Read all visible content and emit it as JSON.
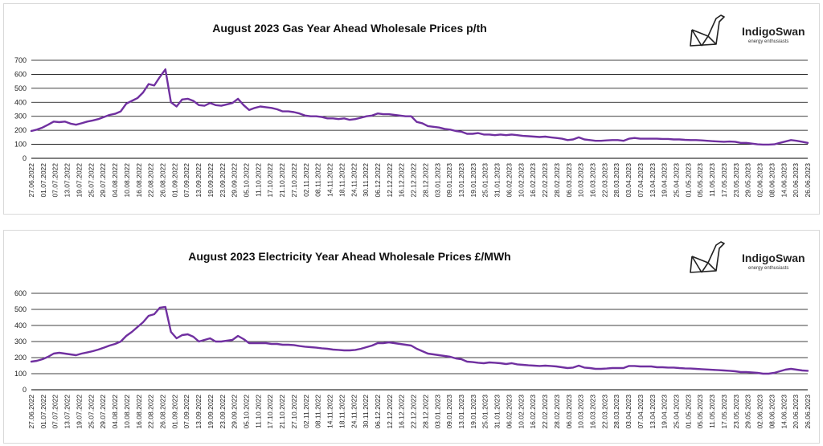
{
  "colors": {
    "line": "#7030A0",
    "grid": "#000000",
    "brand_text": "#222222"
  },
  "logo": {
    "name": "IndigoSwan",
    "tagline": "energy enthusiasts",
    "icon": "origami-swan-icon"
  },
  "chart_data": [
    {
      "type": "line",
      "title": "August 2023 Gas Year Ahead Wholesale Prices p/th",
      "xlabel": "",
      "ylabel": "",
      "ylim": [
        0,
        700
      ],
      "yticks": [
        0,
        100,
        200,
        300,
        400,
        500,
        600,
        700
      ],
      "grid": true,
      "x_tick_labels": [
        "27.06.2022",
        "01.07.2022",
        "07.07.2022",
        "13.07.2022",
        "19.07.2022",
        "25.07.2022",
        "29.07.2022",
        "04.08.2022",
        "10.08.2022",
        "16.08.2022",
        "22.08.2022",
        "26.08.2022",
        "01.09.2022",
        "07.09.2022",
        "13.09.2022",
        "19.09.2022",
        "23.09.2022",
        "29.09.2022",
        "05.10.2022",
        "11.10.2022",
        "17.10.2022",
        "21.10.2022",
        "27.10.2022",
        "02.11.2022",
        "08.11.2022",
        "14.11.2022",
        "18.11.2022",
        "24.11.2022",
        "30.11.2022",
        "06.12.2022",
        "12.12.2022",
        "16.12.2022",
        "22.12.2022",
        "28.12.2022",
        "03.01.2023",
        "09.01.2023",
        "13.01.2023",
        "19.01.2023",
        "25.01.2023",
        "31.01.2023",
        "06.02.2023",
        "10.02.2023",
        "16.02.2023",
        "22.02.2023",
        "28.02.2023",
        "06.03.2023",
        "10.03.2023",
        "16.03.2023",
        "22.03.2023",
        "28.03.2023",
        "03.04.2023",
        "07.04.2023",
        "13.04.2023",
        "19.04.2023",
        "25.04.2023",
        "01.05.2023",
        "05.05.2023",
        "11.05.2023",
        "17.05.2023",
        "23.05.2023",
        "29.05.2023",
        "02.06.2023",
        "08.06.2023",
        "14.06.2023",
        "20.06.2023",
        "26.06.2023"
      ],
      "series": [
        {
          "name": "Gas Year Ahead p/th",
          "values": [
            195,
            205,
            220,
            240,
            262,
            258,
            262,
            248,
            240,
            250,
            262,
            270,
            280,
            295,
            310,
            318,
            335,
            390,
            410,
            430,
            470,
            530,
            520,
            580,
            635,
            400,
            370,
            420,
            425,
            410,
            380,
            375,
            395,
            380,
            375,
            385,
            395,
            425,
            380,
            345,
            360,
            370,
            365,
            360,
            350,
            335,
            335,
            330,
            320,
            305,
            300,
            300,
            295,
            285,
            285,
            280,
            285,
            275,
            280,
            290,
            300,
            305,
            320,
            315,
            315,
            310,
            305,
            300,
            300,
            260,
            250,
            230,
            225,
            220,
            210,
            205,
            195,
            190,
            175,
            175,
            180,
            170,
            170,
            165,
            170,
            165,
            170,
            165,
            160,
            158,
            155,
            152,
            155,
            150,
            145,
            140,
            130,
            135,
            150,
            135,
            130,
            125,
            125,
            128,
            130,
            130,
            125,
            140,
            145,
            140,
            140,
            140,
            140,
            138,
            138,
            135,
            135,
            132,
            130,
            130,
            128,
            125,
            122,
            120,
            118,
            120,
            118,
            110,
            110,
            105,
            100,
            98,
            98,
            100,
            110,
            120,
            130,
            125,
            118,
            110
          ]
        }
      ]
    },
    {
      "type": "line",
      "title": "August 2023 Electricity Year Ahead Wholesale Prices £/MWh",
      "xlabel": "",
      "ylabel": "",
      "ylim": [
        0,
        600
      ],
      "yticks": [
        0,
        100,
        200,
        300,
        400,
        500,
        600
      ],
      "grid": true,
      "x_tick_labels": [
        "27.06.2022",
        "01.07.2022",
        "07.07.2022",
        "13.07.2022",
        "19.07.2022",
        "25.07.2022",
        "29.07.2022",
        "04.08.2022",
        "10.08.2022",
        "16.08.2022",
        "22.08.2022",
        "26.08.2022",
        "01.09.2022",
        "07.09.2022",
        "13.09.2022",
        "19.09.2022",
        "23.09.2022",
        "29.09.2022",
        "05.10.2022",
        "11.10.2022",
        "17.10.2022",
        "21.10.2022",
        "27.10.2022",
        "02.11.2022",
        "08.11.2022",
        "14.11.2022",
        "18.11.2022",
        "24.11.2022",
        "30.11.2022",
        "06.12.2022",
        "12.12.2022",
        "16.12.2022",
        "22.12.2022",
        "28.12.2022",
        "03.01.2023",
        "09.01.2023",
        "13.01.2023",
        "19.01.2023",
        "25.01.2023",
        "31.01.2023",
        "06.02.2023",
        "10.02.2023",
        "16.02.2023",
        "22.02.2023",
        "28.02.2023",
        "06.03.2023",
        "10.03.2023",
        "16.03.2023",
        "22.03.2023",
        "28.03.2023",
        "03.04.2023",
        "07.04.2023",
        "13.04.2023",
        "19.04.2023",
        "25.04.2023",
        "01.05.2023",
        "05.05.2023",
        "11.05.2023",
        "17.05.2023",
        "23.05.2023",
        "29.05.2023",
        "02.06.2023",
        "08.06.2023",
        "14.06.2023",
        "20.06.2023",
        "26.06.2023"
      ],
      "series": [
        {
          "name": "Electricity Year Ahead £/MWh",
          "values": [
            175,
            180,
            190,
            205,
            225,
            230,
            225,
            220,
            215,
            225,
            232,
            240,
            250,
            262,
            275,
            285,
            300,
            335,
            360,
            390,
            420,
            460,
            470,
            510,
            515,
            360,
            320,
            340,
            345,
            330,
            300,
            310,
            320,
            300,
            300,
            305,
            310,
            335,
            315,
            290,
            290,
            290,
            290,
            285,
            285,
            280,
            280,
            278,
            272,
            268,
            265,
            262,
            258,
            255,
            250,
            248,
            245,
            245,
            248,
            255,
            265,
            275,
            290,
            290,
            295,
            290,
            285,
            280,
            275,
            255,
            240,
            225,
            220,
            215,
            210,
            205,
            195,
            190,
            175,
            172,
            168,
            165,
            170,
            168,
            165,
            160,
            165,
            158,
            155,
            152,
            150,
            148,
            150,
            148,
            145,
            140,
            135,
            138,
            150,
            138,
            135,
            130,
            130,
            132,
            135,
            135,
            135,
            148,
            148,
            145,
            145,
            145,
            140,
            140,
            138,
            138,
            135,
            133,
            132,
            130,
            128,
            126,
            124,
            122,
            120,
            118,
            115,
            110,
            110,
            108,
            105,
            100,
            100,
            105,
            115,
            125,
            130,
            125,
            120,
            118
          ]
        }
      ]
    }
  ]
}
